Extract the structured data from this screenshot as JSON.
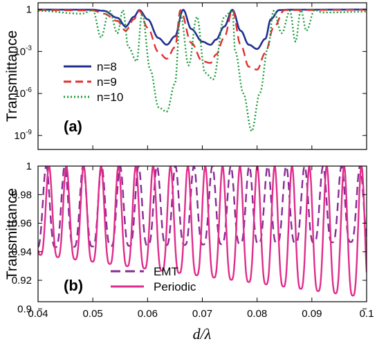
{
  "x_axis": {
    "label": "d/λ",
    "range": [
      0.04,
      0.1
    ],
    "tick_labels": [
      "0.04",
      "0.05",
      "0.06",
      "0.07",
      "0.08",
      "0.09",
      "0.1"
    ]
  },
  "chart_data": [
    {
      "panel": "(a)",
      "type": "line",
      "ylabel": "Transmittance",
      "yscale": "log",
      "xlim": [
        0.04,
        0.1
      ],
      "ylim": [
        1e-10,
        3
      ],
      "yticks": [
        {
          "value": 1,
          "base": "1",
          "exp": ""
        },
        {
          "value": 0.001,
          "base": "10",
          "exp": "-3"
        },
        {
          "value": 1e-06,
          "base": "10",
          "exp": "-6"
        },
        {
          "value": 1e-09,
          "base": "10",
          "exp": "-9"
        }
      ],
      "legend_position": "left",
      "series": [
        {
          "name": "n=8",
          "color": "#1f2f8f",
          "dash": "solid",
          "x": [
            0.04,
            0.05,
            0.052,
            0.0545,
            0.056,
            0.0575,
            0.0585,
            0.06,
            0.062,
            0.0635,
            0.065,
            0.0665,
            0.068,
            0.07,
            0.0715,
            0.0725,
            0.074,
            0.0755,
            0.077,
            0.0785,
            0.08,
            0.0815,
            0.0825,
            0.084,
            0.086,
            0.1
          ],
          "y": [
            0.97,
            0.95,
            0.8,
            0.25,
            0.06,
            0.3,
            0.9,
            0.2,
            0.009,
            0.003,
            0.012,
            0.95,
            0.04,
            0.005,
            0.003,
            0.007,
            0.06,
            0.95,
            0.03,
            0.003,
            0.0015,
            0.008,
            0.2,
            0.9,
            0.96,
            0.98
          ]
        },
        {
          "name": "n=9",
          "color": "#e03030",
          "dash": "dashed",
          "x": [
            0.04,
            0.05,
            0.052,
            0.0545,
            0.056,
            0.0575,
            0.0585,
            0.06,
            0.062,
            0.0635,
            0.065,
            0.066,
            0.068,
            0.07,
            0.0715,
            0.0725,
            0.074,
            0.0755,
            0.077,
            0.0785,
            0.08,
            0.0815,
            0.083,
            0.085,
            0.087,
            0.1
          ],
          "y": [
            0.9,
            0.85,
            0.5,
            0.15,
            0.03,
            0.2,
            0.8,
            0.05,
            0.0009,
            0.0003,
            0.002,
            0.9,
            0.004,
            0.0002,
            0.00015,
            0.0006,
            0.01,
            0.9,
            0.003,
            8e-05,
            5e-05,
            0.0008,
            0.05,
            0.9,
            0.9,
            0.95
          ]
        },
        {
          "name": "n=10",
          "color": "#1a9a3a",
          "dash": "dotted",
          "x": [
            0.04,
            0.048,
            0.05,
            0.0515,
            0.053,
            0.0545,
            0.0555,
            0.0565,
            0.058,
            0.059,
            0.0605,
            0.062,
            0.0635,
            0.065,
            0.066,
            0.0675,
            0.069,
            0.0705,
            0.072,
            0.074,
            0.0755,
            0.076,
            0.0775,
            0.079,
            0.0805,
            0.082,
            0.083,
            0.0845,
            0.086,
            0.087,
            0.088,
            0.089,
            0.0905,
            0.092,
            0.1
          ],
          "y": [
            0.8,
            0.5,
            0.9,
            0.01,
            0.9,
            0.02,
            0.9,
            0.002,
            0.0002,
            0.5,
            5e-05,
            1e-07,
            5e-08,
            5e-06,
            0.5,
            0.0001,
            0.3,
            3e-05,
            1e-05,
            0.3,
            0.9,
            0.001,
            1e-06,
            2e-09,
            1e-06,
            0.002,
            0.8,
            0.02,
            0.8,
            0.005,
            0.9,
            0.03,
            0.9,
            0.6,
            0.7
          ]
        }
      ]
    },
    {
      "panel": "(b)",
      "type": "line",
      "ylabel": "Transmittance",
      "xlim": [
        0.04,
        0.1
      ],
      "ylim": [
        0.905,
        1.0
      ],
      "ytick_labels": [
        "1",
        "0.98",
        "0.96",
        "0.94",
        "0.92",
        "0.9"
      ],
      "legend_position": "bottom-left",
      "series": [
        {
          "name": "EMT",
          "color": "#8a2a96",
          "dash": "dashed",
          "period": 0.00337,
          "phase": 0.0415,
          "min_start": 0.943,
          "min_end": 0.947
        },
        {
          "name": "Periodic",
          "color": "#e02c8a",
          "dash": "solid",
          "period": 0.00317,
          "phase": 0.042,
          "min_start": 0.938,
          "min_end": 0.908
        }
      ]
    }
  ]
}
